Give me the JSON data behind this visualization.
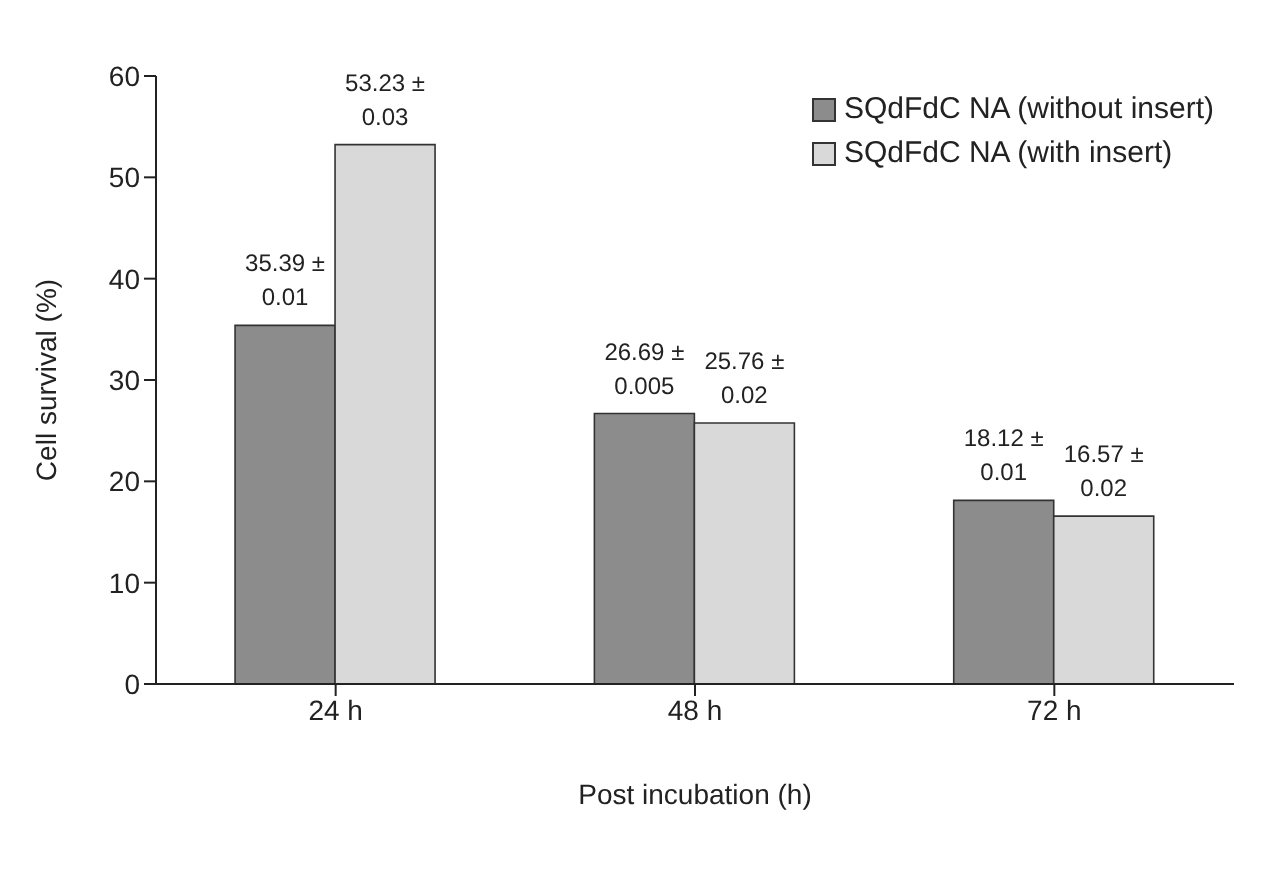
{
  "chart_data": {
    "type": "bar",
    "xlabel": "Post incubation (h)",
    "ylabel": "Cell survival (%)",
    "categories": [
      "24 h",
      "48 h",
      "72 h"
    ],
    "series": [
      {
        "name": "SQdFdC NA (without insert)",
        "color": "#8c8c8c",
        "values": [
          35.39,
          26.69,
          18.12
        ],
        "value_labels": [
          "35.39 ± 0.01",
          "26.69 ± 0.005",
          "18.12 ± 0.01"
        ]
      },
      {
        "name": "SQdFdC NA (with insert)",
        "color": "#d9d9d9",
        "values": [
          53.23,
          25.76,
          16.57
        ],
        "value_labels": [
          "53.23 ± 0.03",
          "25.76 ± 0.02",
          "16.57 ± 0.02"
        ]
      }
    ],
    "ylim": [
      0,
      60
    ],
    "yticks": [
      0,
      10,
      20,
      30,
      40,
      50,
      60
    ],
    "grid": false,
    "legend": "top right"
  }
}
